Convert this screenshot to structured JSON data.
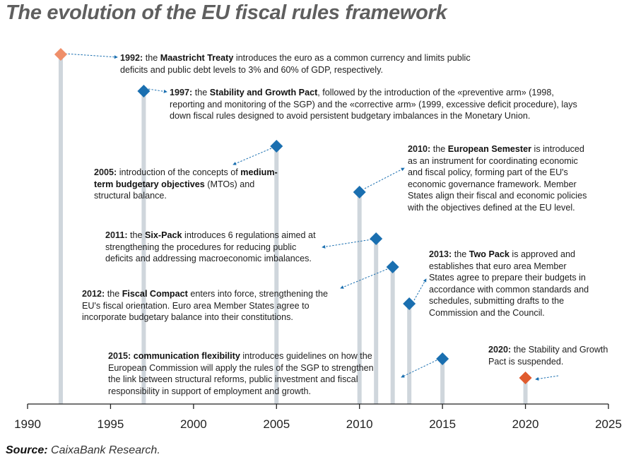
{
  "title": "The evolution of the EU fiscal rules framework",
  "source": {
    "label": "Source:",
    "text": "CaixaBank Research."
  },
  "colors": {
    "line": "#cfd6dc",
    "blue": "#1a6fb0",
    "first": "#ef8f6a",
    "last": "#e05b2e",
    "axis": "#222222"
  },
  "chart_data": {
    "type": "timeline",
    "xlim": [
      1990,
      2025
    ],
    "ticks": [
      1990,
      1995,
      2000,
      2005,
      2010,
      2015,
      2020,
      2025
    ],
    "events": [
      {
        "year": 1992,
        "color": "#ef8f6a",
        "year_label": "1992:",
        "pre": " the ",
        "term": "Maastricht Treaty",
        "text": " introduces the euro as a common currency and limits public deficits and public debt levels to 3% and 60% of GDP, respectively."
      },
      {
        "year": 1997,
        "color": "#1a6fb0",
        "year_label": "1997:",
        "pre": " the ",
        "term": "Stability and Growth Pact",
        "text": ", followed by the introduction of the «preventive arm» (1998, reporting and monitoring of the SGP) and the «corrective arm» (1999, excessive deficit procedure), lays down fiscal rules designed to avoid persistent budgetary imbalances in the Monetary Union."
      },
      {
        "year": 2005,
        "color": "#1a6fb0",
        "year_label": "2005:",
        "pre": " introduction of the concepts of ",
        "term": "medium-term budgetary objectives",
        "text": " (MTOs) and structural balance."
      },
      {
        "year": 2010,
        "color": "#1a6fb0",
        "year_label": "2010:",
        "pre": " the ",
        "term": "European Semester",
        "text": " is introduced as an instrument for coordinating economic and fiscal policy, forming part of the EU's economic governance framework. Member States align their fiscal and economic policies with the objectives defined at the EU level."
      },
      {
        "year": 2011,
        "color": "#1a6fb0",
        "year_label": "2011:",
        "pre": " the ",
        "term": "Six-Pack",
        "text": " introduces 6 regulations aimed at strengthening the procedures for reducing public deficits and addressing macroeconomic imbalances."
      },
      {
        "year": 2012,
        "color": "#1a6fb0",
        "year_label": "2012:",
        "pre": " the ",
        "term": "Fiscal Compact",
        "text": " enters into force, strengthening the EU's fiscal orientation. Euro area Member States agree to incorporate budgetary balance into their constitutions."
      },
      {
        "year": 2013,
        "color": "#1a6fb0",
        "year_label": "2013:",
        "pre": " the ",
        "term": "Two Pack",
        "text": " is approved and establishes that euro area Member States agree to prepare their budgets in accordance with common standards and schedules, submitting drafts to the Commission and the Council."
      },
      {
        "year": 2015,
        "color": "#1a6fb0",
        "year_label": "2015:",
        "pre": " ",
        "term": "communication flexibility",
        "text": " introduces guidelines on how the European Commission will apply the rules of the SGP to strengthen the link between structural reforms, public investment and fiscal responsibility in support of employment and growth."
      },
      {
        "year": 2020,
        "color": "#e05b2e",
        "year_label": "2020:",
        "pre": " the Stability and Growth Pact is suspended.",
        "term": "",
        "text": ""
      }
    ]
  }
}
